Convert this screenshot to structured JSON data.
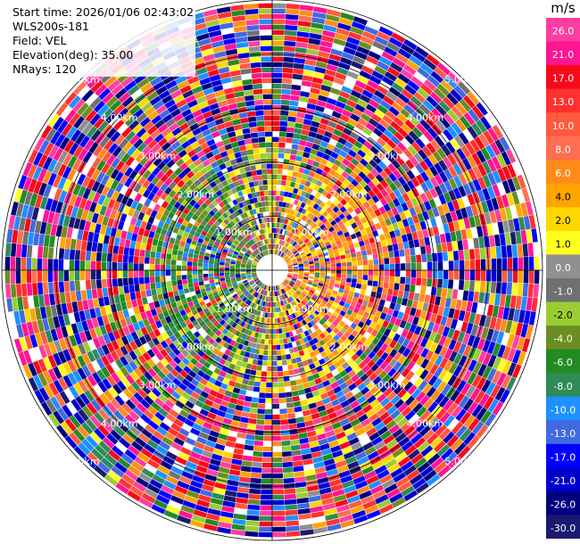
{
  "info": {
    "start_time": "Start time: 2026/01/06 02:43:02",
    "instrument": "WLS200s-181",
    "field": "Field: VEL",
    "elevation": "Elevation(deg): 35.00",
    "nrays": "NRays: 120"
  },
  "range_rings": [
    "1.00km",
    "2.00km",
    "3.00km",
    "4.00km",
    "5.00km"
  ],
  "colorbar": {
    "unit": "m/s",
    "labels": [
      "26.0",
      "21.0",
      "17.0",
      "13.0",
      "10.0",
      "8.0",
      "6.0",
      "4.0",
      "2.0",
      "1.0",
      "0.0",
      "-1.0",
      "-2.0",
      "-4.0",
      "-6.0",
      "-8.0",
      "-10.0",
      "-13.0",
      "-17.0",
      "-21.0",
      "-26.0",
      "-30.0"
    ],
    "colors": [
      "#ff3ea1",
      "#ff1493",
      "#f50a1a",
      "#ff3030",
      "#ff5a3c",
      "#ff6e50",
      "#ff8c1a",
      "#ffa500",
      "#ffd700",
      "#ffff20",
      "#909090",
      "#707070",
      "#9acd32",
      "#6b8e23",
      "#228b22",
      "#2e8b57",
      "#1e90ff",
      "#4169e1",
      "#0000ff",
      "#0000cd",
      "#000080",
      "#191970"
    ]
  }
}
